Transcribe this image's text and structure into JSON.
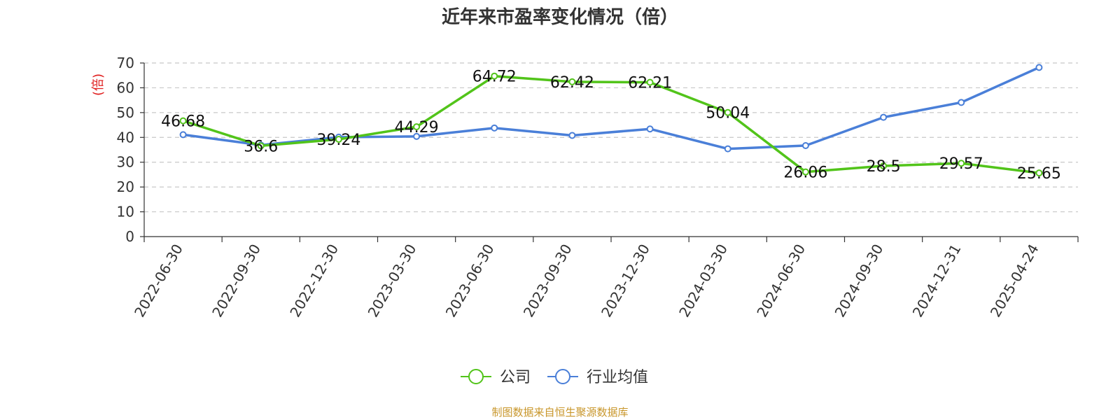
{
  "title": "近年来市盈率变化情况（倍）",
  "source": "制图数据来自恒生聚源数据库",
  "source_color": "#c8962a",
  "chart_data": {
    "type": "line",
    "title": "近年来市盈率变化情况（倍）",
    "ylabel": "(倍)",
    "ylabel_color": "#e02020",
    "ylim": [
      0,
      70
    ],
    "yticks": [
      0,
      10,
      20,
      30,
      40,
      50,
      60,
      70
    ],
    "grid": true,
    "legend_position": "bottom-center",
    "categories": [
      "2022-06-30",
      "2022-09-30",
      "2022-12-30",
      "2023-03-30",
      "2023-06-30",
      "2023-09-30",
      "2023-12-30",
      "2024-03-30",
      "2024-06-30",
      "2024-09-30",
      "2024-12-31",
      "2025-04-24"
    ],
    "series": [
      {
        "name": "公司",
        "color": "#52c41a",
        "values": [
          46.68,
          36.6,
          39.24,
          44.29,
          64.72,
          62.42,
          62.21,
          50.04,
          26.06,
          28.5,
          29.57,
          25.65
        ],
        "labels": [
          "46.68",
          "36.6",
          "39.24",
          "44.29",
          "64.72",
          "62.42",
          "62.21",
          "50.04",
          "26.06",
          "28.5",
          "29.57",
          "25.65"
        ]
      },
      {
        "name": "行业均值",
        "color": "#4a7fd8",
        "values": [
          41.1,
          36.9,
          40.1,
          40.4,
          43.8,
          40.8,
          43.4,
          35.4,
          36.7,
          48.1,
          54.1,
          68.2
        ]
      }
    ]
  }
}
